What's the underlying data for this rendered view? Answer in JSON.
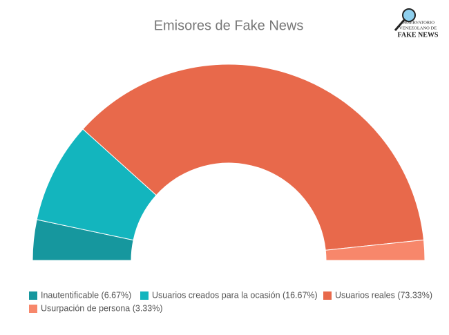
{
  "chart_data": {
    "type": "pie",
    "half": true,
    "title": "Emisores de Fake News",
    "categories": [
      "Inautentificable (6.67%)",
      "Usuarios creados para la ocasión (16.67%)",
      "Usuarios reales (73.33%)",
      "Usurpación de persona (3.33%)"
    ],
    "values": [
      6.67,
      16.67,
      73.33,
      3.33
    ],
    "colors": [
      "#16979e",
      "#13b5be",
      "#e8694b",
      "#f7876b"
    ],
    "legend": "bottom-left"
  },
  "logo": {
    "lines": [
      "OBSERVATORIO",
      "VENEZOLANO DE",
      "FAKE NEWS"
    ]
  }
}
